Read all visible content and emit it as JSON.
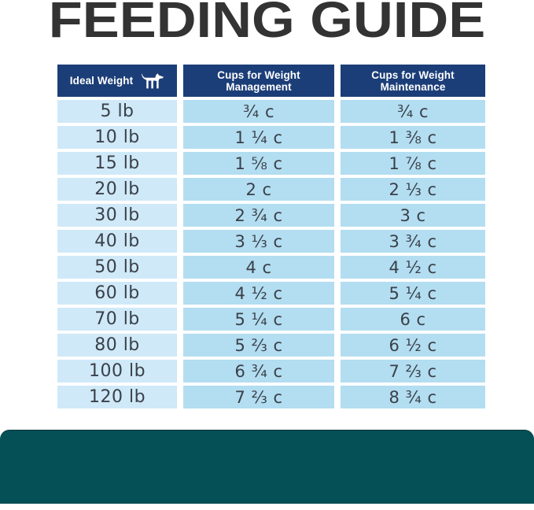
{
  "title": "FEEDING GUIDE",
  "table": {
    "headers": [
      {
        "label": "Ideal Weight",
        "icon": "dog-icon"
      },
      {
        "label": "Cups for Weight Management"
      },
      {
        "label": "Cups for Weight Maintenance"
      }
    ],
    "rows": [
      {
        "weight": "5 lb",
        "management": "¾ c",
        "maintenance": "¾ c"
      },
      {
        "weight": "10 lb",
        "management": "1 ¼ c",
        "maintenance": "1 ⅜ c"
      },
      {
        "weight": "15 lb",
        "management": "1 ⅝ c",
        "maintenance": "1 ⅞ c"
      },
      {
        "weight": "20 lb",
        "management": "2 c",
        "maintenance": "2 ⅓ c"
      },
      {
        "weight": "30 lb",
        "management": "2 ¾ c",
        "maintenance": "3 c"
      },
      {
        "weight": "40 lb",
        "management": "3 ⅓ c",
        "maintenance": "3 ¾ c"
      },
      {
        "weight": "50 lb",
        "management": "4 c",
        "maintenance": "4 ½ c"
      },
      {
        "weight": "60 lb",
        "management": "4 ½ c",
        "maintenance": "5 ¼ c"
      },
      {
        "weight": "70 lb",
        "management": "5 ¼ c",
        "maintenance": "6 c"
      },
      {
        "weight": "80 lb",
        "management": "5 ⅔ c",
        "maintenance": "6 ½ c"
      },
      {
        "weight": "100 lb",
        "management": "6 ¾ c",
        "maintenance": "7 ⅔ c"
      },
      {
        "weight": "120 lb",
        "management": "7 ⅔ c",
        "maintenance": "8 ¾ c"
      }
    ]
  },
  "colors": {
    "title_color": "#333333",
    "header_bg": "#1c3e78",
    "weight_bg": "#cfe9f8",
    "cups_bg": "#b3ddf1",
    "cell_text": "#3a4048",
    "footer_bg": "#045056"
  }
}
